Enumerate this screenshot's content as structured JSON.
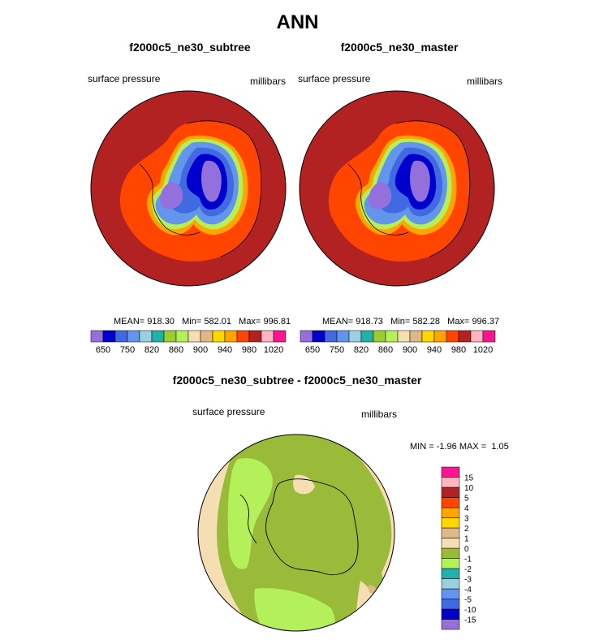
{
  "main_title": "ANN",
  "panels": [
    {
      "title": "f2000c5_ne30_subtree",
      "left_label": "surface pressure",
      "right_label": "millibars",
      "stats": {
        "mean_label": "MEAN=",
        "mean": "918.30",
        "min_label": "Min=",
        "min": "582.01",
        "max_label": "Max=",
        "max": "996.81"
      }
    },
    {
      "title": "f2000c5_ne30_master",
      "left_label": "surface pressure",
      "right_label": "millibars",
      "stats": {
        "mean_label": "MEAN=",
        "mean": "918.73",
        "min_label": "Min=",
        "min": "582.28",
        "max_label": "Max=",
        "max": "996.37"
      }
    }
  ],
  "diff_panel": {
    "title": "f2000c5_ne30_subtree - f2000c5_ne30_master",
    "left_label": "surface pressure",
    "right_label": "millibars",
    "minmax": {
      "min_label": "MIN =",
      "min": "-1.96",
      "max_label": "MAX =",
      "max": "1.05"
    }
  },
  "chart_data": [
    {
      "type": "heatmap",
      "projection": "south-polar-stereographic",
      "title": "f2000c5_ne30_subtree",
      "variable": "surface pressure",
      "units": "millibars",
      "mean": 918.3,
      "min": 582.01,
      "max": 996.81,
      "colorbar": {
        "orientation": "horizontal",
        "levels": [
          650,
          700,
          750,
          800,
          820,
          840,
          860,
          880,
          900,
          920,
          940,
          960,
          980,
          1000,
          1020
        ],
        "tick_labels": [
          "650",
          "750",
          "820",
          "860",
          "900",
          "940",
          "980",
          "1020"
        ],
        "colors": [
          "#9370db",
          "#0000cd",
          "#4169e1",
          "#6495ed",
          "#9ad0e0",
          "#20b2aa",
          "#9acd32",
          "#b4f05a",
          "#f5deb3",
          "#deb887",
          "#ffd700",
          "#ffa500",
          "#ff4500",
          "#b22222",
          "#ffb6c1",
          "#ff1493"
        ]
      }
    },
    {
      "type": "heatmap",
      "projection": "south-polar-stereographic",
      "title": "f2000c5_ne30_master",
      "variable": "surface pressure",
      "units": "millibars",
      "mean": 918.73,
      "min": 582.28,
      "max": 996.37,
      "colorbar": {
        "orientation": "horizontal",
        "levels": [
          650,
          700,
          750,
          800,
          820,
          840,
          860,
          880,
          900,
          920,
          940,
          960,
          980,
          1000,
          1020
        ],
        "tick_labels": [
          "650",
          "750",
          "820",
          "860",
          "900",
          "940",
          "980",
          "1020"
        ],
        "colors": [
          "#9370db",
          "#0000cd",
          "#4169e1",
          "#6495ed",
          "#9ad0e0",
          "#20b2aa",
          "#9acd32",
          "#b4f05a",
          "#f5deb3",
          "#deb887",
          "#ffd700",
          "#ffa500",
          "#ff4500",
          "#b22222",
          "#ffb6c1",
          "#ff1493"
        ]
      }
    },
    {
      "type": "heatmap",
      "projection": "south-polar-stereographic",
      "title": "f2000c5_ne30_subtree - f2000c5_ne30_master",
      "variable": "surface pressure",
      "units": "millibars",
      "min": -1.96,
      "max": 1.05,
      "colorbar": {
        "orientation": "vertical",
        "levels": [
          -15,
          -10,
          -5,
          -4,
          -3,
          -2,
          -1,
          0,
          1,
          2,
          3,
          4,
          5,
          10,
          15
        ],
        "tick_labels": [
          "-15",
          "-10",
          "-5",
          "-4",
          "-3",
          "-2",
          "-1",
          "0",
          "1",
          "2",
          "3",
          "4",
          "5",
          "10",
          "15"
        ],
        "colors": [
          "#9370db",
          "#0000cd",
          "#4169e1",
          "#6495ed",
          "#9ad0e0",
          "#20b2aa",
          "#b4f05a",
          "#9abb3a",
          "#f5deb3",
          "#deb887",
          "#ffd700",
          "#ffa500",
          "#ff4500",
          "#b22222",
          "#ffb6c1",
          "#ff1493"
        ]
      }
    }
  ]
}
